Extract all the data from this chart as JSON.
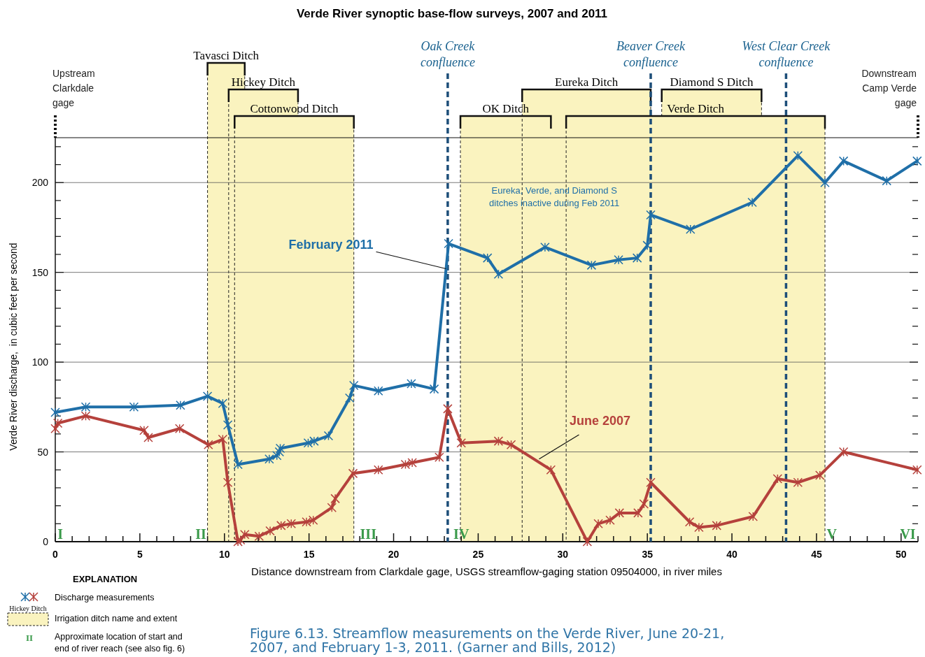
{
  "chart_data": {
    "type": "line",
    "title": "Verde River synoptic base-flow surveys, 2007 and 2011",
    "xlabel": "Distance downstream from Clarkdale gage, USGS streamflow-gaging station 09504000, in river miles",
    "ylabel": "Verde River discharge,  in cubic feet per second",
    "xlim": [
      0,
      51
    ],
    "ylim": [
      0,
      225
    ],
    "xticks": [
      0,
      {
        "value": 1,
        "label": null
      },
      {
        "value": 2,
        "label": null
      },
      {
        "value": 3,
        "label": null
      },
      {
        "value": 4,
        "label": null
      },
      5,
      {
        "value": 6,
        "label": null
      },
      {
        "value": 7,
        "label": null
      },
      {
        "value": 8,
        "label": null
      },
      {
        "value": 9,
        "label": null
      },
      10,
      {
        "value": 11,
        "label": null
      },
      {
        "value": 12,
        "label": null
      },
      {
        "value": 13,
        "label": null
      },
      {
        "value": 14,
        "label": null
      },
      15,
      {
        "value": 16,
        "label": null
      },
      {
        "value": 17,
        "label": null
      },
      {
        "value": 18,
        "label": null
      },
      {
        "value": 19,
        "label": null
      },
      20,
      {
        "value": 21,
        "label": null
      },
      {
        "value": 22,
        "label": null
      },
      {
        "value": 23,
        "label": null
      },
      {
        "value": 24,
        "label": null
      },
      25,
      {
        "value": 26,
        "label": null
      },
      {
        "value": 27,
        "label": null
      },
      {
        "value": 28,
        "label": null
      },
      {
        "value": 29,
        "label": null
      },
      30,
      {
        "value": 31,
        "label": null
      },
      {
        "value": 32,
        "label": null
      },
      {
        "value": 33,
        "label": null
      },
      {
        "value": 34,
        "label": null
      },
      35,
      {
        "value": 36,
        "label": null
      },
      {
        "value": 37,
        "label": null
      },
      {
        "value": 38,
        "label": null
      },
      {
        "value": 39,
        "label": null
      },
      40,
      {
        "value": 41,
        "label": null
      },
      {
        "value": 42,
        "label": null
      },
      {
        "value": 43,
        "label": null
      },
      {
        "value": 44,
        "label": null
      },
      45,
      {
        "value": 46,
        "label": null
      },
      {
        "value": 47,
        "label": null
      },
      {
        "value": 48,
        "label": null
      },
      {
        "value": 49,
        "label": null
      },
      50,
      {
        "value": 51,
        "label": null
      }
    ],
    "yticks": [
      0,
      {
        "value": 10,
        "label": null
      },
      {
        "value": 20,
        "label": null
      },
      {
        "value": 30,
        "label": null
      },
      {
        "value": 40,
        "label": null
      },
      50,
      {
        "value": 60,
        "label": null
      },
      {
        "value": 70,
        "label": null
      },
      {
        "value": 80,
        "label": null
      },
      {
        "value": 90,
        "label": null
      },
      100,
      {
        "value": 110,
        "label": null
      },
      {
        "value": 120,
        "label": null
      },
      {
        "value": 130,
        "label": null
      },
      {
        "value": 140,
        "label": null
      },
      150,
      {
        "value": 160,
        "label": null
      },
      {
        "value": 170,
        "label": null
      },
      {
        "value": 180,
        "label": null
      },
      {
        "value": 190,
        "label": null
      },
      200,
      {
        "value": 210,
        "label": null
      },
      {
        "value": 220,
        "label": null
      }
    ],
    "grid": "y",
    "marker": "cross",
    "line_style": "solid",
    "series": [
      {
        "name": "February 2011",
        "color": "#1f6fa8",
        "x": [
          0,
          1.8,
          4.65,
          7.4,
          9.0,
          9.9,
          10.2,
          10.8,
          12.65,
          13.1,
          13.25,
          13.3,
          14.95,
          15.3,
          16.15,
          17.4,
          17.65,
          19.1,
          21.05,
          22.4,
          23.25,
          25.55,
          26.2,
          28.95,
          31.7,
          33.3,
          34.4,
          35.0,
          35.2,
          37.55,
          41.2,
          43.9,
          45.5,
          46.6,
          49.15,
          50.95
        ],
        "values": [
          72,
          75,
          75,
          76,
          81,
          77,
          65,
          43,
          46,
          48,
          50,
          52,
          55,
          56,
          59,
          80,
          87,
          84,
          88,
          85,
          166,
          158,
          149,
          164,
          154,
          157,
          158,
          165,
          182,
          174,
          189,
          215,
          200,
          212,
          201,
          212
        ]
      },
      {
        "name": "June 2007",
        "color": "#b5413c",
        "x": [
          0,
          0.15,
          1.8,
          5.25,
          5.5,
          7.35,
          9.05,
          9.9,
          10.2,
          10.8,
          10.95,
          11.2,
          12.05,
          12.7,
          13.35,
          13.95,
          14.85,
          15.25,
          16.35,
          16.55,
          17.6,
          19.1,
          20.7,
          21.1,
          22.7,
          23.2,
          24.0,
          26.2,
          26.95,
          29.3,
          31.45,
          32.1,
          32.8,
          33.35,
          34.45,
          34.8,
          35.2,
          37.5,
          38.05,
          39.1,
          41.25,
          42.7,
          43.9,
          45.2,
          46.6,
          50.95
        ],
        "values": [
          63,
          66,
          70,
          62,
          58,
          63,
          54,
          57,
          33,
          0,
          1,
          4,
          3,
          6,
          9,
          10,
          11,
          12,
          19,
          24,
          38,
          40,
          43,
          44,
          47,
          74,
          55,
          56,
          54,
          40,
          0,
          10,
          12,
          16,
          16,
          21,
          33,
          11,
          8,
          9,
          14,
          35,
          33,
          37,
          50,
          40
        ]
      }
    ],
    "bands": [
      {
        "axis": "x",
        "from": 9.0,
        "to": 11.2,
        "label": "Tavasci Ditch",
        "color": "#faf3bf"
      },
      {
        "axis": "x",
        "from": 10.25,
        "to": 14.35,
        "label": "Hickey Ditch",
        "color": "#faf3bf"
      },
      {
        "axis": "x",
        "from": 10.6,
        "to": 17.65,
        "label": "Cottonwood Ditch",
        "color": "#faf3bf"
      },
      {
        "axis": "x",
        "from": 23.95,
        "to": 29.3,
        "label": "OK Ditch",
        "color": "#faf3bf"
      },
      {
        "axis": "x",
        "from": 27.6,
        "to": 35.2,
        "label": "Eureka Ditch",
        "color": "#faf3bf"
      },
      {
        "axis": "x",
        "from": 35.85,
        "to": 41.75,
        "label": "Diamond S Ditch",
        "color": "#faf3bf"
      },
      {
        "axis": "x",
        "from": 30.2,
        "to": 45.5,
        "label": "Verde Ditch",
        "color": "#faf3bf"
      }
    ],
    "ref_lines": [
      {
        "axis": "x",
        "value": 0,
        "label": "Upstream Clarkdale gage",
        "line_style": "dotted",
        "color": "#111111"
      },
      {
        "axis": "x",
        "value": 23.2,
        "label": "Oak Creek confluence",
        "line_style": "dashed",
        "color": "#1d4e79"
      },
      {
        "axis": "x",
        "value": 35.2,
        "label": "Beaver Creek confluence",
        "line_style": "dashed",
        "color": "#1d4e79"
      },
      {
        "axis": "x",
        "value": 43.2,
        "label": "West Clear Creek confluence",
        "line_style": "dashed",
        "color": "#1d4e79"
      },
      {
        "axis": "x",
        "value": 51,
        "label": "Downstream Camp Verde gage",
        "line_style": "dotted",
        "color": "#111111"
      }
    ],
    "annotations": [
      "I",
      "II",
      "III",
      "IV",
      "V",
      "VI",
      "Eureka, Verde, and Diamond S ditches inactive during Feb 2011",
      "EXPLANATION",
      "Discharge measurements",
      "Irrigation ditch name and extent",
      "Approximate location of start and end of river reach (see also fig. 6)",
      "Figure 6.13. Streamflow measurements on the Verde River, June 20-21, 2007, and February 1-3, 2011. (Garner and Bills, 2012)"
    ]
  }
}
